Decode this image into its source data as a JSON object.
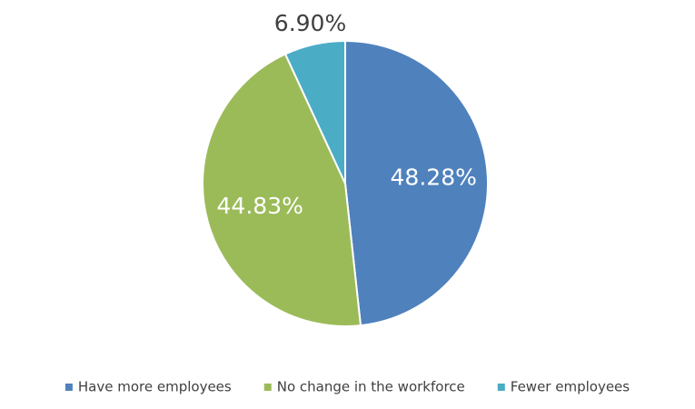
{
  "chart_data": {
    "type": "pie",
    "categories": [
      "Have more employees",
      "No change in the workforce",
      "Fewer employees"
    ],
    "values": [
      48.28,
      44.83,
      6.9
    ],
    "value_labels": [
      "48.28%",
      "44.83%",
      "6.90%"
    ],
    "colors": [
      "#4f81bd",
      "#9bbb59",
      "#4bacc6"
    ],
    "legend": "bottom"
  }
}
